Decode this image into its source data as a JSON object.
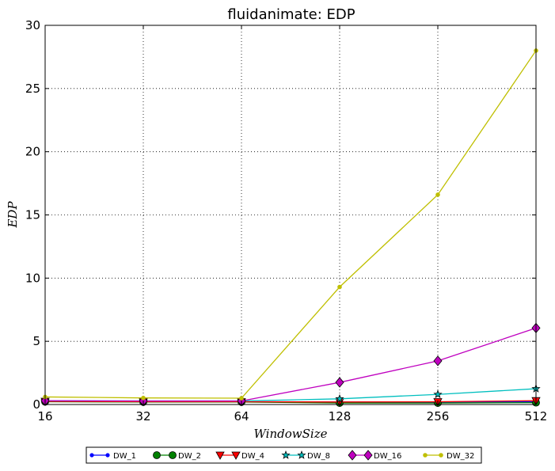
{
  "chart_data": {
    "type": "line",
    "title": "fluidanimate: EDP",
    "xlabel": "WindowSize",
    "ylabel": "EDP",
    "x_scale": "log2",
    "x": [
      16,
      32,
      64,
      128,
      256,
      512
    ],
    "x_tick_labels": [
      "16",
      "32",
      "64",
      "128",
      "256",
      "512"
    ],
    "ylim": [
      0,
      30
    ],
    "y_ticks": [
      0,
      5,
      10,
      15,
      20,
      25,
      30
    ],
    "y_tick_labels": [
      "0",
      "5",
      "10",
      "15",
      "20",
      "25",
      "30"
    ],
    "grid": true,
    "legend_position": "bottom-center",
    "series": [
      {
        "name": "DW_1",
        "color": "#0000ff",
        "marker": "point",
        "values": [
          0.25,
          0.22,
          0.22,
          0.2,
          0.2,
          0.22
        ]
      },
      {
        "name": "DW_2",
        "color": "#008000",
        "marker": "circle",
        "values": [
          0.22,
          0.2,
          0.2,
          0.12,
          0.12,
          0.15
        ]
      },
      {
        "name": "DW_4",
        "color": "#ff0000",
        "marker": "triangle-down",
        "values": [
          0.25,
          0.22,
          0.22,
          0.2,
          0.22,
          0.3
        ]
      },
      {
        "name": "DW_8",
        "color": "#00bfbf",
        "marker": "star",
        "values": [
          0.3,
          0.28,
          0.28,
          0.45,
          0.8,
          1.25
        ]
      },
      {
        "name": "DW_16",
        "color": "#bf00bf",
        "marker": "diamond",
        "values": [
          0.3,
          0.28,
          0.28,
          1.75,
          3.45,
          6.05
        ]
      },
      {
        "name": "DW_32",
        "color": "#bfbf00",
        "marker": "hexagon",
        "values": [
          0.6,
          0.52,
          0.5,
          9.3,
          16.6,
          28.0
        ]
      }
    ]
  }
}
